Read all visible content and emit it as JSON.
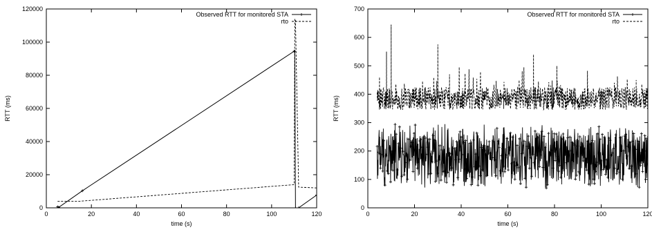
{
  "chart_data": [
    {
      "type": "line",
      "xlabel": "time (s)",
      "ylabel": "RTT (ms)",
      "xlim": [
        0,
        120
      ],
      "ylim": [
        0,
        120000
      ],
      "x_ticks": [
        0,
        20,
        40,
        60,
        80,
        100,
        120
      ],
      "y_ticks": [
        0,
        20000,
        40000,
        60000,
        80000,
        100000,
        120000
      ],
      "grid": false,
      "legend_position": "top-right",
      "series": [
        {
          "name": "Observed RTT for monitored STA",
          "style": "solid-with-points",
          "x": [
            5,
            5.5,
            16,
            110,
            110.3,
            110.6,
            112,
            120
          ],
          "y": [
            600,
            300,
            10300,
            94500,
            94500,
            0,
            0,
            7700
          ]
        },
        {
          "name": "rto",
          "style": "dashed",
          "x": [
            5,
            15,
            110,
            110.3,
            110.6,
            112,
            120
          ],
          "y": [
            4000,
            4000,
            14000,
            114000,
            113000,
            12500,
            12000
          ]
        }
      ]
    },
    {
      "type": "line",
      "xlabel": "time (s)",
      "ylabel": "RTT (ms)",
      "xlim": [
        0,
        120
      ],
      "ylim": [
        0,
        700
      ],
      "x_ticks": [
        0,
        20,
        40,
        60,
        80,
        100,
        120
      ],
      "y_ticks": [
        0,
        100,
        200,
        300,
        400,
        500,
        600,
        700
      ],
      "grid": false,
      "legend_position": "top-right",
      "series": [
        {
          "name": "Observed RTT for monitored STA",
          "style": "solid-with-points",
          "x_range": [
            4,
            120
          ],
          "center": 180,
          "amplitude": 120,
          "range": [
            70,
            340
          ]
        },
        {
          "name": "rto",
          "style": "dashed",
          "x_range": [
            4,
            120
          ],
          "center": 385,
          "amplitude": 50,
          "spikes": [
            {
              "x": 5,
              "y": 460
            },
            {
              "x": 8,
              "y": 550
            },
            {
              "x": 10,
              "y": 645
            },
            {
              "x": 30,
              "y": 575
            },
            {
              "x": 35,
              "y": 470
            },
            {
              "x": 71,
              "y": 540
            },
            {
              "x": 81,
              "y": 500
            },
            {
              "x": 115,
              "y": 450
            }
          ]
        }
      ]
    }
  ]
}
